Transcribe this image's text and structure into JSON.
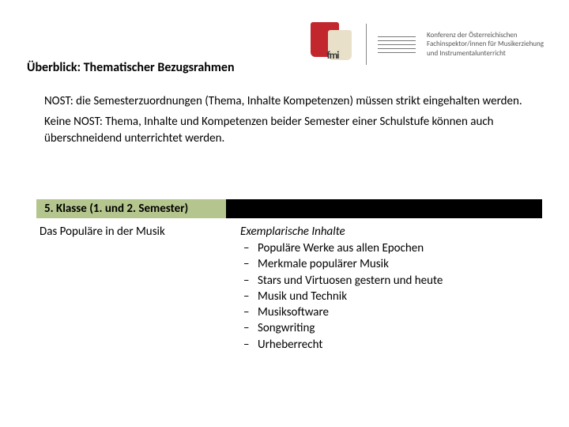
{
  "header": {
    "logo_text": "fmi",
    "org_lines": [
      "Konferenz der Österreichischen",
      "Fachinspektor/innen für Musikerziehung",
      "und Instrumentalunterricht"
    ]
  },
  "title": "Überblick: Thematischer Bezugsrahmen",
  "intro": {
    "p1": "NOST: die Semesterzuordnungen (Thema, Inhalte Kompetenzen) müssen strikt eingehalten werden.",
    "p2": "Keine NOST: Thema, Inhalte und Kompetenzen beider Semester einer Schulstufe können auch überschneidend unterrichtet werden."
  },
  "section": {
    "label": "5. Klasse (1. und 2. Semester)",
    "bar_bg": "#000000",
    "label_bg": "#b5c58e"
  },
  "left_topic": "Das Populäre in der Musik",
  "right": {
    "subhead": "Exemplarische Inhalte",
    "items": [
      "Populäre Werke aus allen Epochen",
      "Merkmale populärer Musik",
      "Stars und Virtuosen gestern und heute",
      "Musik und Technik",
      "Musiksoftware",
      "Songwriting",
      "Urheberrecht"
    ]
  },
  "colors": {
    "text": "#000000",
    "background": "#ffffff",
    "accent_green": "#b5c58e",
    "accent_red": "#c1272d"
  },
  "typography": {
    "title_size_pt": 12,
    "body_size_pt": 11,
    "font_family": "Calibri"
  }
}
